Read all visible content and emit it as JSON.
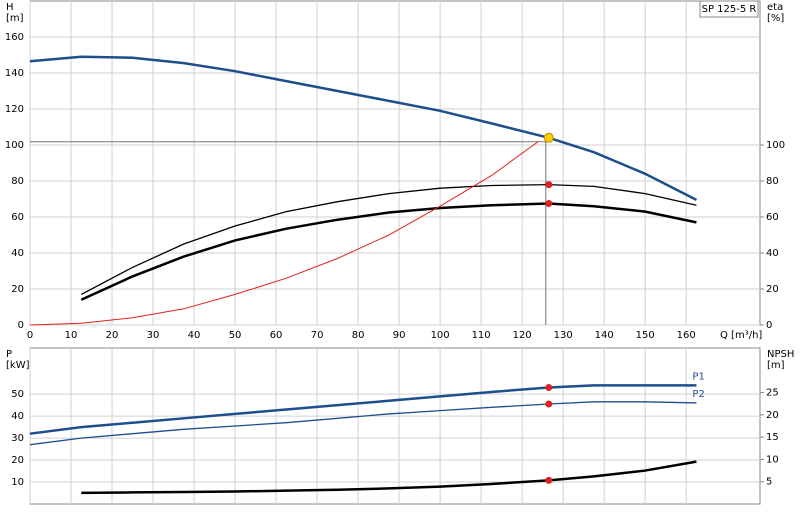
{
  "chart_data": [
    {
      "type": "line",
      "title": "SP 125-5 R",
      "y_label": [
        "H",
        "[m]"
      ],
      "y2_label": [
        "eta",
        "[%]"
      ],
      "x_label": "Q [m³/h]",
      "xlim": [
        0,
        178
      ],
      "xticks": [
        0,
        10,
        20,
        30,
        40,
        50,
        60,
        70,
        80,
        90,
        100,
        110,
        120,
        130,
        140,
        150,
        160
      ],
      "ylim": [
        0,
        180
      ],
      "yticks": [
        0,
        20,
        40,
        60,
        80,
        100,
        120,
        140,
        160
      ],
      "y2lim": [
        0,
        180
      ],
      "y2ticks": [
        0,
        20,
        40,
        60,
        80,
        100
      ],
      "grid": true,
      "series": [
        {
          "color": "#1f4e8c",
          "width": 2.5,
          "x": [
            0,
            12.5,
            25,
            37.5,
            50,
            62.5,
            75,
            87.5,
            100,
            112.5,
            126.5,
            137.5,
            150,
            162.5
          ],
          "values": [
            146.5,
            149,
            148.5,
            145.5,
            141,
            135.5,
            130,
            124.5,
            119,
            112,
            104,
            96,
            84,
            69.5
          ]
        },
        {
          "color": "#000000",
          "width": 1.3,
          "axis": "y2",
          "x": [
            12.5,
            25,
            37.5,
            50,
            62.5,
            75,
            87.5,
            100,
            112.5,
            126.5,
            137.5,
            150,
            162.5
          ],
          "values": [
            17,
            32,
            45,
            55,
            63,
            68.5,
            73,
            76,
            77.5,
            78,
            77,
            73,
            66.5
          ]
        },
        {
          "color": "#000000",
          "width": 2.5,
          "axis": "y2",
          "x": [
            12.5,
            25,
            37.5,
            50,
            62.5,
            75,
            87.5,
            100,
            112.5,
            126.5,
            137.5,
            150,
            162.5
          ],
          "values": [
            14,
            27,
            38,
            47,
            53.5,
            58.5,
            62.5,
            65,
            66.5,
            67.5,
            66,
            63,
            57
          ]
        },
        {
          "color": "#e02020",
          "width": 1,
          "x": [
            0,
            12.5,
            25,
            37.5,
            50,
            62.5,
            75,
            87.5,
            100,
            112.5,
            124
          ],
          "values": [
            0,
            1,
            4,
            9,
            17,
            26,
            37,
            50,
            66,
            83,
            102
          ]
        }
      ],
      "markers": [
        {
          "x": 126.5,
          "y": 104,
          "color": "#f5d000"
        },
        {
          "x": 126.5,
          "y": 78,
          "color": "#e02020",
          "axis": "y2"
        },
        {
          "x": 126.5,
          "y": 67.5,
          "color": "#e02020",
          "axis": "y2"
        }
      ]
    },
    {
      "type": "line",
      "y_label": [
        "P",
        "[kW]"
      ],
      "y2_label": [
        "NPSH",
        "[m]"
      ],
      "xlim": [
        0,
        178
      ],
      "xticks": [
        0,
        10,
        20,
        30,
        40,
        50,
        60,
        70,
        80,
        90,
        100,
        110,
        120,
        130,
        140,
        150,
        160
      ],
      "ylim": [
        0,
        71
      ],
      "yticks": [
        10,
        20,
        30,
        40,
        50
      ],
      "y2lim": [
        0,
        35
      ],
      "y2ticks": [
        5,
        10,
        15,
        20,
        25
      ],
      "grid": true,
      "series": [
        {
          "name": "P1",
          "color": "#1f4e8c",
          "width": 2.5,
          "x": [
            0,
            12.5,
            25,
            37.5,
            50,
            62.5,
            75,
            87.5,
            100,
            112.5,
            126.5,
            137.5,
            150,
            162.5
          ],
          "values": [
            32,
            35,
            37,
            39,
            41,
            43,
            45,
            47,
            49,
            51,
            53,
            54,
            54,
            54
          ]
        },
        {
          "name": "P2",
          "color": "#1f4e8c",
          "width": 1.3,
          "x": [
            0,
            12.5,
            25,
            37.5,
            50,
            62.5,
            75,
            87.5,
            100,
            112.5,
            126.5,
            137.5,
            150,
            162.5
          ],
          "values": [
            27,
            30,
            32,
            34,
            35.5,
            37,
            39,
            41,
            42.5,
            44,
            45.5,
            46.5,
            46.5,
            46
          ]
        },
        {
          "color": "#000000",
          "width": 2.5,
          "axis": "y2",
          "x": [
            0,
            12.5,
            25,
            37.5,
            50,
            62.5,
            75,
            87.5,
            100,
            112.5,
            126.5,
            137.5,
            150,
            162.5
          ],
          "values": [
            null,
            2.5,
            2.6,
            2.7,
            2.8,
            3.0,
            3.2,
            3.5,
            3.9,
            4.5,
            5.3,
            6.2,
            7.5,
            9.5
          ]
        }
      ],
      "markers": [
        {
          "x": 126.5,
          "y": 53,
          "color": "#e02020"
        },
        {
          "x": 126.5,
          "y": 45.5,
          "color": "#e02020"
        },
        {
          "x": 126.5,
          "y": 5.3,
          "color": "#e02020",
          "axis": "y2"
        }
      ]
    }
  ]
}
